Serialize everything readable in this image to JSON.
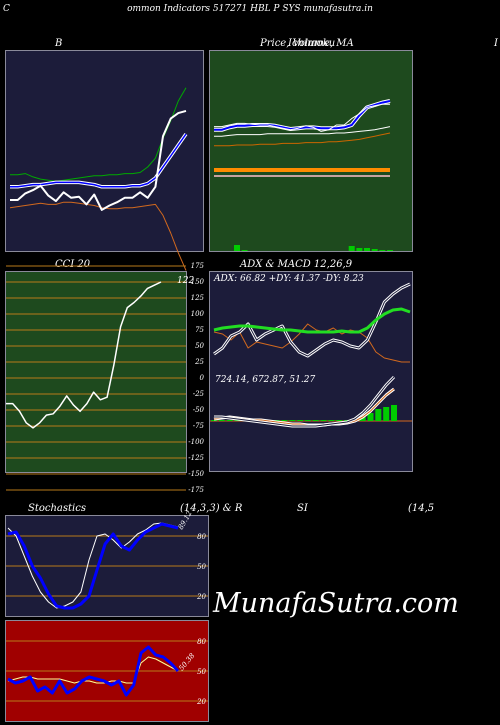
{
  "page": {
    "title": "ommon  Indicators 517271 HBL P SYS munafasutra.in",
    "left_fragment": "C",
    "watermark": "MunafaSutra.com"
  },
  "panels": {
    "bb": {
      "caption": "B"
    },
    "price": {
      "caption": "Price,  Volume,  MA",
      "caption_overlap": "Ichimoku",
      "right_fragment": "I"
    },
    "cci": {
      "caption": "CCI 20",
      "value_label": "122"
    },
    "adx": {
      "caption": "ADX  & MACD 12,26,9",
      "stats": "ADX: 66.82  +DY: 41.37 -DY: 8.23"
    },
    "macd": {
      "stats": "724.14,  672.87,  51.27"
    },
    "stoch": {
      "caption_left": "Stochastics",
      "caption_mid": "(14,3,3) & R",
      "caption_rsi": "SI",
      "caption_right": "(14,5",
      "value_label": "89.12"
    },
    "rsi": {
      "value_label": "50.38"
    }
  },
  "colors": {
    "navy": "#1c1c3a",
    "dark_green": "#1e4a1e",
    "red": "#a00000",
    "blue": "#0000ff",
    "green_line": "#00aa00",
    "bright_green": "#22dd22",
    "orange": "#d2691e",
    "grid_orange": "#b87a1a",
    "white": "#ffffff"
  },
  "chart_data": [
    {
      "id": "bollinger",
      "type": "line",
      "title": "B",
      "series": [
        {
          "values": [
            33,
            33,
            34,
            31,
            29,
            28,
            27,
            28,
            29,
            30,
            31,
            32,
            32,
            33,
            33,
            34,
            34,
            35,
            40,
            48,
            66,
            82,
            100,
            112
          ]
        },
        {
          "values": [
            3,
            4,
            5,
            6,
            7,
            6,
            6,
            8,
            8,
            7,
            6,
            5,
            3,
            2,
            2,
            3,
            3,
            4,
            5,
            6,
            -4,
            -20,
            -38,
            -54
          ]
        },
        {
          "values": [
            10,
            10,
            16,
            19,
            23,
            14,
            9,
            17,
            12,
            13,
            6,
            15,
            1,
            5,
            8,
            12,
            12,
            17,
            12,
            22,
            68,
            84,
            89,
            91
          ]
        },
        {
          "values": [
            22,
            22,
            23,
            24,
            24,
            25,
            26,
            26,
            26,
            26,
            25,
            24,
            22,
            22,
            22,
            22,
            23,
            23,
            25,
            30,
            40,
            50,
            60,
            70
          ]
        }
      ]
    },
    {
      "id": "price",
      "type": "line",
      "title": "Price,  Volume,  MA",
      "series": [
        {
          "values": [
            64,
            64,
            67,
            69,
            69,
            70,
            70,
            70,
            69,
            67,
            65,
            66,
            67,
            67,
            66,
            66,
            66,
            67,
            70,
            82,
            92,
            95,
            98,
            100
          ]
        },
        {
          "values": [
            68,
            68,
            70,
            72,
            72,
            71,
            70,
            70,
            68,
            66,
            64,
            66,
            69,
            67,
            62,
            64,
            70,
            70,
            78,
            84,
            92,
            94,
            96,
            96
          ]
        },
        {
          "values": [
            56,
            56,
            57,
            58,
            58,
            58,
            58,
            59,
            59,
            59,
            59,
            59,
            59,
            59,
            59,
            59,
            60,
            60,
            61,
            62,
            63,
            64,
            66,
            68
          ]
        },
        {
          "values": [
            44,
            44,
            44,
            45,
            45,
            45,
            46,
            46,
            46,
            47,
            47,
            47,
            48,
            48,
            48,
            49,
            49,
            50,
            51,
            52,
            54,
            56,
            58,
            60
          ]
        },
        {
          "values": [
            0,
            0,
            0,
            0,
            0,
            0,
            0,
            0,
            0,
            0,
            0,
            0,
            0,
            0,
            0,
            0,
            0,
            0,
            0,
            0,
            0,
            0,
            0,
            0
          ]
        },
        {
          "values": [
            1,
            1,
            1,
            1,
            1,
            1,
            1,
            1,
            1,
            1,
            1,
            1,
            1,
            1,
            1,
            1,
            1,
            1,
            1,
            1,
            1,
            1,
            1,
            1
          ]
        }
      ],
      "volume": [
        0,
        0,
        0,
        6,
        1,
        0,
        0,
        0,
        0,
        0,
        0,
        0,
        0,
        0,
        0,
        0,
        0,
        0,
        5,
        3,
        3,
        2,
        1,
        1
      ]
    },
    {
      "id": "cci",
      "type": "line",
      "title": "CCI 20",
      "yticks": [
        175,
        150,
        125,
        100,
        75,
        50,
        25,
        0,
        -25,
        -50,
        -75,
        -100,
        -125,
        -150,
        -175
      ],
      "values": [
        -40,
        -40,
        -52,
        -70,
        -78,
        -70,
        -58,
        -56,
        -44,
        -28,
        -42,
        -52,
        -40,
        -22,
        -34,
        -30,
        20,
        80,
        110,
        118,
        128,
        140,
        145,
        150
      ]
    },
    {
      "id": "adx",
      "type": "line",
      "title": "ADX  & MACD 12,26,9",
      "series": [
        {
          "values": [
            42,
            44,
            45,
            46,
            46,
            45,
            44,
            43,
            42,
            42,
            41,
            40,
            40,
            40,
            40,
            41,
            40,
            40,
            44,
            52,
            58,
            62,
            63,
            60
          ]
        },
        {
          "values": [
            18,
            24,
            36,
            40,
            48,
            32,
            38,
            42,
            46,
            30,
            20,
            16,
            22,
            28,
            32,
            30,
            26,
            24,
            32,
            50,
            70,
            78,
            84,
            88
          ]
        },
        {
          "values": [
            40,
            38,
            32,
            40,
            24,
            30,
            28,
            26,
            24,
            30,
            38,
            48,
            42,
            40,
            44,
            38,
            42,
            40,
            34,
            20,
            14,
            12,
            10,
            10
          ]
        }
      ]
    },
    {
      "id": "macd",
      "type": "line",
      "series": [
        {
          "values": [
            4,
            4,
            3,
            2,
            1,
            0,
            -1,
            -2,
            -3,
            -4,
            -5,
            -5,
            -5,
            -5,
            -4,
            -3,
            -2,
            -1,
            2,
            8,
            16,
            26,
            36,
            44
          ]
        },
        {
          "values": [
            2,
            3,
            4,
            3,
            2,
            1,
            1,
            0,
            -1,
            -2,
            -3,
            -3,
            -4,
            -4,
            -4,
            -3,
            -3,
            -2,
            0,
            4,
            10,
            18,
            26,
            32
          ]
        }
      ],
      "histogram": [
        1,
        1,
        1,
        1,
        1,
        1,
        1,
        1,
        1,
        1,
        1,
        1,
        1,
        1,
        1,
        1,
        1,
        1,
        2,
        4,
        8,
        12,
        14,
        16
      ]
    },
    {
      "id": "stochastics",
      "type": "line",
      "title": "Stochastics",
      "yticks": [
        80,
        50,
        20
      ],
      "series": [
        {
          "values": [
            82,
            84,
            70,
            50,
            38,
            22,
            10,
            8,
            8,
            12,
            20,
            46,
            72,
            82,
            70,
            66,
            76,
            84,
            88,
            92,
            90,
            88
          ]
        },
        {
          "values": [
            88,
            80,
            60,
            40,
            24,
            14,
            8,
            10,
            14,
            24,
            56,
            80,
            82,
            76,
            68,
            74,
            82,
            86,
            92,
            93,
            91,
            89
          ]
        }
      ]
    },
    {
      "id": "rsi",
      "type": "line",
      "yticks": [
        80,
        50,
        20
      ],
      "series": [
        {
          "values": [
            40,
            42,
            44,
            44,
            42,
            42,
            42,
            42,
            40,
            38,
            40,
            40,
            38,
            38,
            40,
            40,
            38,
            38,
            58,
            64,
            62,
            58,
            54,
            50
          ]
        },
        {
          "values": [
            42,
            38,
            40,
            44,
            30,
            34,
            28,
            40,
            28,
            32,
            40,
            44,
            42,
            40,
            36,
            40,
            26,
            36,
            68,
            74,
            66,
            64,
            58,
            50
          ]
        }
      ]
    }
  ]
}
